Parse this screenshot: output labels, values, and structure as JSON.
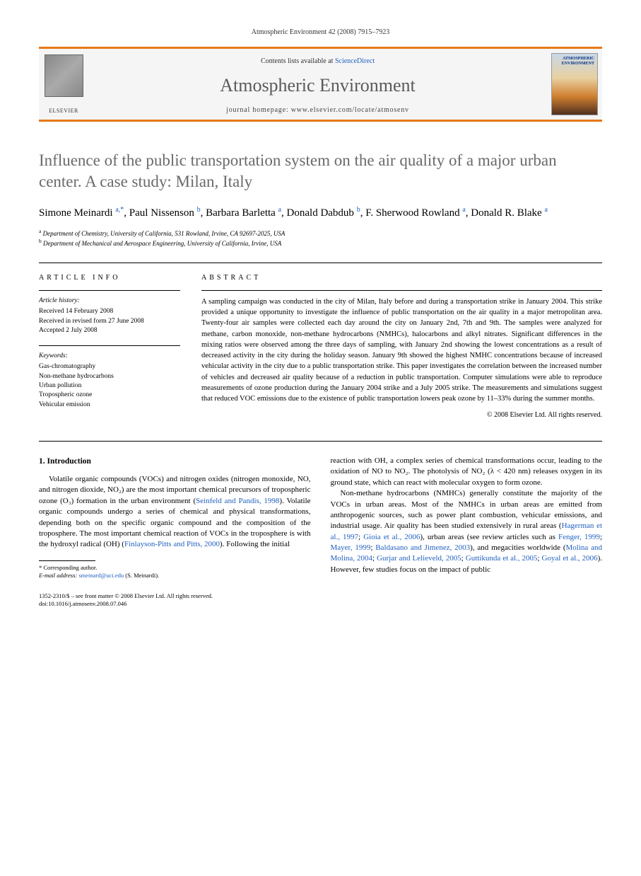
{
  "header": {
    "citation": "Atmospheric Environment 42 (2008) 7915–7923"
  },
  "banner": {
    "contents_prefix": "Contents lists available at ",
    "contents_link": "ScienceDirect",
    "journal_name": "Atmospheric Environment",
    "homepage_prefix": "journal homepage: ",
    "homepage_url": "www.elsevier.com/locate/atmosenv",
    "publisher": "ELSEVIER",
    "cover_text": "ATMOSPHERIC ENVIRONMENT"
  },
  "title": "Influence of the public transportation system on the air quality of a major urban center. A case study: Milan, Italy",
  "authors_html": "Simone Meinardi <sup>a,*</sup>, Paul Nissenson <sup>b</sup>, Barbara Barletta <sup>a</sup>, Donald Dabdub <sup>b</sup>, F. Sherwood Rowland <sup>a</sup>, Donald R. Blake <sup>a</sup>",
  "affiliations": {
    "a": "Department of Chemistry, University of California, 531 Rowland, Irvine, CA 92697-2025, USA",
    "b": "Department of Mechanical and Aerospace Engineering, University of California, Irvine, USA"
  },
  "article_info": {
    "label": "ARTICLE INFO",
    "history_heading": "Article history:",
    "received": "Received 14 February 2008",
    "revised": "Received in revised form 27 June 2008",
    "accepted": "Accepted 2 July 2008",
    "keywords_heading": "Keywords:",
    "keywords": [
      "Gas-chromatography",
      "Non-methane hydrocarbons",
      "Urban pollution",
      "Tropospheric ozone",
      "Vehicular emission"
    ]
  },
  "abstract": {
    "label": "ABSTRACT",
    "text": "A sampling campaign was conducted in the city of Milan, Italy before and during a transportation strike in January 2004. This strike provided a unique opportunity to investigate the influence of public transportation on the air quality in a major metropolitan area. Twenty-four air samples were collected each day around the city on January 2nd, 7th and 9th. The samples were analyzed for methane, carbon monoxide, non-methane hydrocarbons (NMHCs), halocarbons and alkyl nitrates. Significant differences in the mixing ratios were observed among the three days of sampling, with January 2nd showing the lowest concentrations as a result of decreased activity in the city during the holiday season. January 9th showed the highest NMHC concentrations because of increased vehicular activity in the city due to a public transportation strike. This paper investigates the correlation between the increased number of vehicles and decreased air quality because of a reduction in public transportation. Computer simulations were able to reproduce measurements of ozone production during the January 2004 strike and a July 2005 strike. The measurements and simulations suggest that reduced VOC emissions due to the existence of public transportation lowers peak ozone by 11–33% during the summer months.",
    "copyright": "© 2008 Elsevier Ltd. All rights reserved."
  },
  "body": {
    "section_heading": "1. Introduction",
    "col1_p1_pre": "Volatile organic compounds (VOCs) and nitrogen oxides (nitrogen monoxide, NO, and nitrogen dioxide, NO₂) are the most important chemical precursors of tropospheric ozone (O₃) formation in the urban environment (",
    "col1_p1_cite1": "Seinfeld and Pandis, 1998",
    "col1_p1_mid": "). Volatile organic compounds undergo a series of chemical and physical transformations, depending both on the specific organic compound and the composition of the troposphere. The most important chemical reaction of VOCs in the troposphere is with the hydroxyl radical (OH) (",
    "col1_p1_cite2": "Finlayson-Pitts and Pitts, 2000",
    "col1_p1_post": "). Following the initial",
    "col2_p1": "reaction with OH, a complex series of chemical transformations occur, leading to the oxidation of NO to NO₂. The photolysis of NO₂ (λ < 420 nm) releases oxygen in its ground state, which can react with molecular oxygen to form ozone.",
    "col2_p2_pre": "Non-methane hydrocarbons (NMHCs) generally constitute the majority of the VOCs in urban areas. Most of the NMHCs in urban areas are emitted from anthropogenic sources, such as power plant combustion, vehicular emissions, and industrial usage. Air quality has been studied extensively in rural areas (",
    "col2_p2_c1": "Hagerman et al., 1997",
    "col2_p2_s1": "; ",
    "col2_p2_c2": "Gioia et al., 2006",
    "col2_p2_mid1": "), urban areas (see review articles such as ",
    "col2_p2_c3": "Fenger, 1999",
    "col2_p2_s2": "; ",
    "col2_p2_c4": "Mayer, 1999",
    "col2_p2_s3": "; ",
    "col2_p2_c5": "Baldasano and Jimenez, 2003",
    "col2_p2_mid2": "), and megacities worldwide (",
    "col2_p2_c6": "Molina and Molina, 2004",
    "col2_p2_s4": "; ",
    "col2_p2_c7": "Gurjar and Lelieveld, 2005",
    "col2_p2_s5": "; ",
    "col2_p2_c8": "Guttikunda et al., 2005",
    "col2_p2_s6": "; ",
    "col2_p2_c9": "Goyal et al., 2006",
    "col2_p2_post": "). However, few studies focus on the impact of public"
  },
  "footnote": {
    "corresponding": "* Corresponding author.",
    "email_label": "E-mail address: ",
    "email": "smeinard@uci.edu",
    "email_suffix": " (S. Meinardi)."
  },
  "footer": {
    "line1": "1352-2310/$ – see front matter © 2008 Elsevier Ltd. All rights reserved.",
    "line2": "doi:10.1016/j.atmosenv.2008.07.046"
  }
}
